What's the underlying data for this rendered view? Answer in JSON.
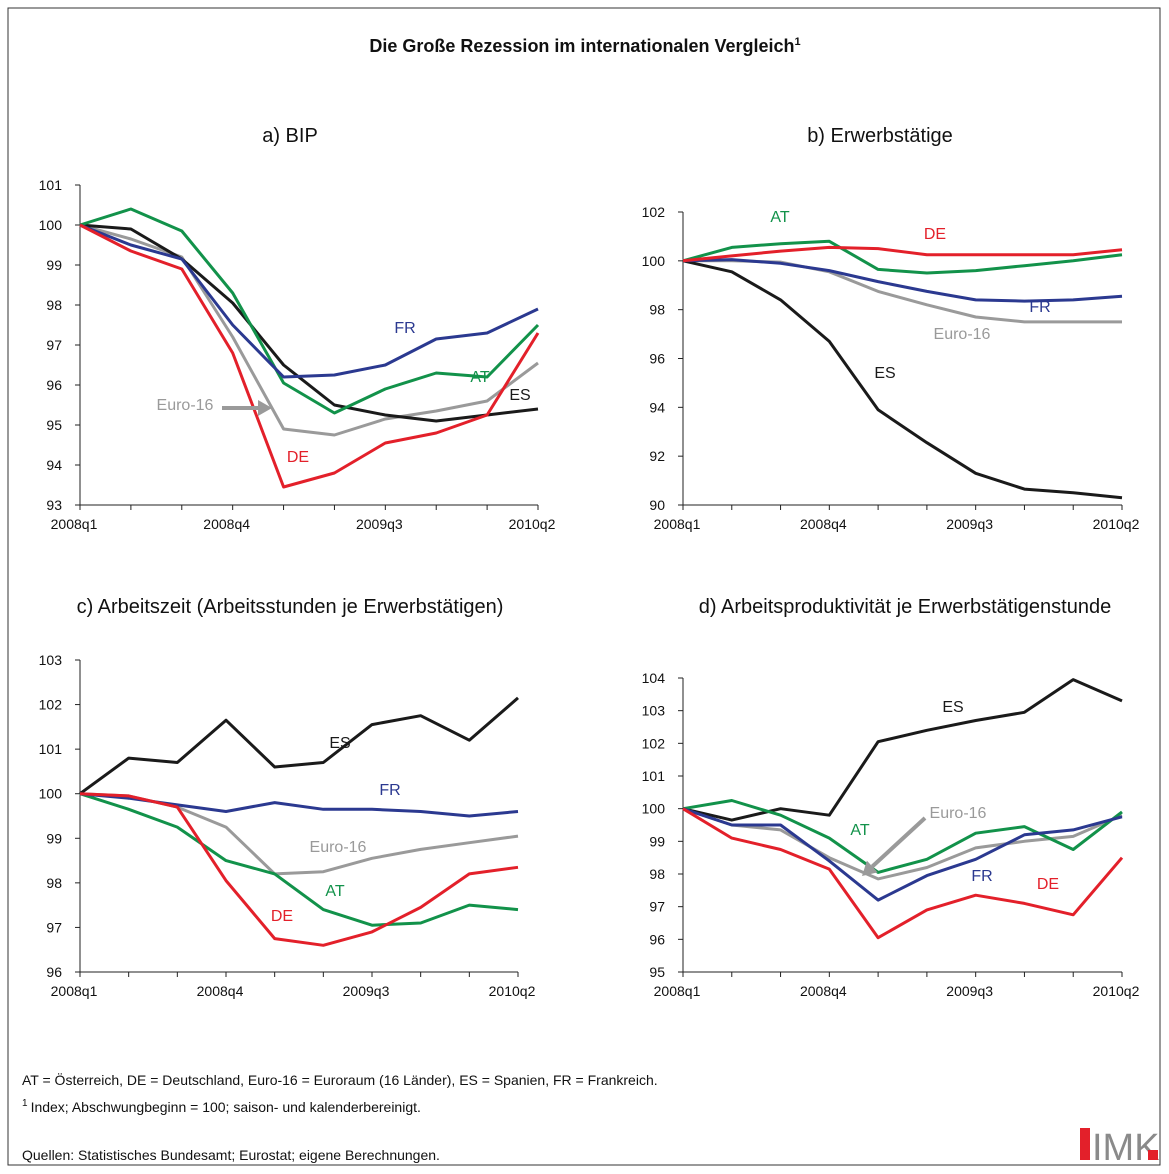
{
  "title": "Die Große Rezession im internationalen Vergleich",
  "title_note": "1",
  "chart_data": [
    {
      "type": "line",
      "title": "a) BIP",
      "categories": [
        "2008q1",
        null,
        null,
        "2008q4",
        null,
        null,
        "2009q3",
        null,
        null,
        "2010q2"
      ],
      "ylim": [
        93,
        101
      ],
      "yticks": [
        93,
        94,
        95,
        96,
        97,
        98,
        99,
        100,
        101
      ],
      "series": [
        {
          "name": "DE",
          "color": "#e3202a",
          "values": [
            100,
            99.35,
            98.9,
            96.8,
            93.45,
            93.8,
            94.55,
            94.8,
            95.25,
            97.3
          ]
        },
        {
          "name": "FR",
          "color": "#2b3990",
          "values": [
            100,
            99.5,
            99.15,
            97.5,
            96.2,
            96.25,
            96.5,
            97.15,
            97.3,
            97.9
          ]
        },
        {
          "name": "AT",
          "color": "#12924a",
          "values": [
            100,
            100.4,
            99.85,
            98.3,
            96.05,
            95.3,
            95.9,
            96.3,
            96.2,
            97.5
          ]
        },
        {
          "name": "ES",
          "color": "#1a1a1a",
          "values": [
            100,
            99.9,
            99.15,
            98.05,
            96.5,
            95.5,
            95.25,
            95.1,
            95.25,
            95.4
          ]
        },
        {
          "name": "Euro-16",
          "color": "#9a9a9a",
          "values": [
            100,
            99.65,
            99.2,
            97.2,
            94.9,
            94.75,
            95.15,
            95.35,
            95.6,
            96.55
          ]
        }
      ]
    },
    {
      "type": "line",
      "title": "b) Erwerbstätige",
      "categories": [
        "2008q1",
        null,
        null,
        "2008q4",
        null,
        null,
        "2009q3",
        null,
        null,
        "2010q2"
      ],
      "ylim": [
        90,
        102
      ],
      "yticks": [
        90,
        92,
        94,
        96,
        98,
        100,
        102
      ],
      "series": [
        {
          "name": "DE",
          "color": "#e3202a",
          "values": [
            100,
            100.2,
            100.4,
            100.55,
            100.5,
            100.25,
            100.25,
            100.25,
            100.25,
            100.45
          ]
        },
        {
          "name": "FR",
          "color": "#2b3990",
          "values": [
            100,
            100.05,
            99.9,
            99.6,
            99.15,
            98.75,
            98.4,
            98.35,
            98.4,
            98.55
          ]
        },
        {
          "name": "AT",
          "color": "#12924a",
          "values": [
            100,
            100.55,
            100.7,
            100.8,
            99.65,
            99.5,
            99.6,
            99.8,
            100,
            100.25
          ]
        },
        {
          "name": "ES",
          "color": "#1a1a1a",
          "values": [
            100,
            99.55,
            98.4,
            96.7,
            93.9,
            92.55,
            91.3,
            90.65,
            90.5,
            90.3
          ]
        },
        {
          "name": "Euro-16",
          "color": "#9a9a9a",
          "values": [
            100,
            100,
            99.95,
            99.55,
            98.75,
            98.2,
            97.7,
            97.5,
            97.5,
            97.5
          ]
        }
      ]
    },
    {
      "type": "line",
      "title": "c) Arbeitszeit (Arbeitsstunden je Erwerbstätigen)",
      "categories": [
        "2008q1",
        null,
        null,
        "2008q4",
        null,
        null,
        "2009q3",
        null,
        null,
        "2010q2"
      ],
      "ylim": [
        96,
        103
      ],
      "yticks": [
        96,
        97,
        98,
        99,
        100,
        101,
        102,
        103
      ],
      "series": [
        {
          "name": "DE",
          "color": "#e3202a",
          "values": [
            100,
            99.95,
            99.7,
            98.05,
            96.75,
            96.6,
            96.9,
            97.45,
            98.2,
            98.35
          ]
        },
        {
          "name": "FR",
          "color": "#2b3990",
          "values": [
            100,
            99.9,
            99.75,
            99.6,
            99.8,
            99.65,
            99.65,
            99.6,
            99.5,
            99.6
          ]
        },
        {
          "name": "AT",
          "color": "#12924a",
          "values": [
            100,
            99.65,
            99.25,
            98.5,
            98.2,
            97.4,
            97.05,
            97.1,
            97.5,
            97.4
          ]
        },
        {
          "name": "ES",
          "color": "#1a1a1a",
          "values": [
            100,
            100.8,
            100.7,
            101.65,
            100.6,
            100.7,
            101.55,
            101.75,
            101.2,
            102.15
          ]
        },
        {
          "name": "Euro-16",
          "color": "#9a9a9a",
          "values": [
            100,
            99.95,
            99.7,
            99.25,
            98.2,
            98.25,
            98.55,
            98.75,
            98.9,
            99.05
          ]
        }
      ]
    },
    {
      "type": "line",
      "title": "d) Arbeitsproduktivität je Erwerbstätigenstunde",
      "categories": [
        "2008q1",
        null,
        null,
        "2008q4",
        null,
        null,
        "2009q3",
        null,
        null,
        "2010q2"
      ],
      "ylim": [
        95,
        104
      ],
      "yticks": [
        95,
        96,
        97,
        98,
        99,
        100,
        101,
        102,
        103,
        104
      ],
      "series": [
        {
          "name": "DE",
          "color": "#e3202a",
          "values": [
            100,
            99.1,
            98.75,
            98.15,
            96.05,
            96.9,
            97.35,
            97.1,
            96.75,
            98.5
          ]
        },
        {
          "name": "FR",
          "color": "#2b3990",
          "values": [
            100,
            99.5,
            99.5,
            98.4,
            97.2,
            97.95,
            98.45,
            99.2,
            99.35,
            99.75
          ]
        },
        {
          "name": "AT",
          "color": "#12924a",
          "values": [
            100,
            100.25,
            99.8,
            99.1,
            98.05,
            98.45,
            99.25,
            99.45,
            98.75,
            99.9
          ]
        },
        {
          "name": "ES",
          "color": "#1a1a1a",
          "values": [
            100,
            99.65,
            100,
            99.8,
            102.05,
            102.4,
            102.7,
            102.95,
            103.95,
            103.3
          ]
        },
        {
          "name": "Euro-16",
          "color": "#9a9a9a",
          "values": [
            100,
            99.5,
            99.35,
            98.5,
            97.85,
            98.2,
            98.8,
            99,
            99.15,
            99.8
          ]
        }
      ]
    }
  ],
  "notes": "AT = Österreich, DE = Deutschland, Euro-16 = Euroraum (16 Länder), ES = Spanien, FR = Frankreich.",
  "footnote": {
    "marker": "1",
    "text": "Index; Abschwungbeginn = 100; saison- und kalenderbereinigt."
  },
  "source": "Quellen: Statistisches Bundesamt; Eurostat; eigene Berechnungen.",
  "logo": "IMK"
}
